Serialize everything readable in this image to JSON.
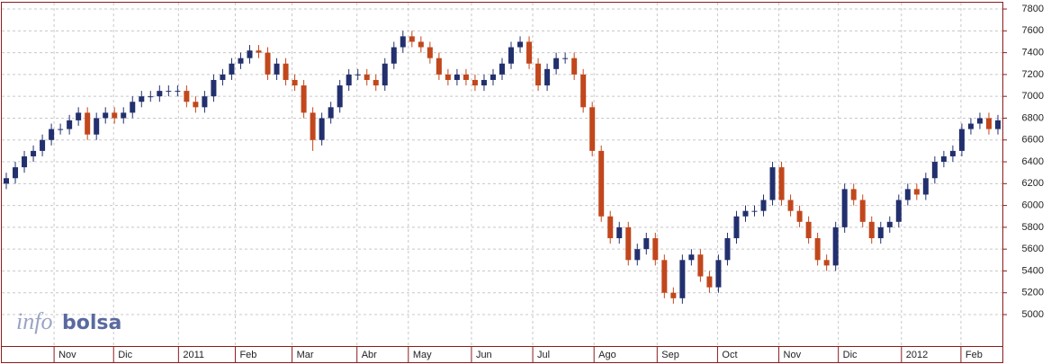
{
  "chart_data": {
    "type": "candlestick",
    "watermark": [
      "info",
      "bolsa"
    ],
    "up_color": "#23306e",
    "down_color": "#c2471c",
    "grid": true,
    "ylim": [
      4712,
      7858
    ],
    "yticks": [
      5000,
      5200,
      5400,
      5600,
      5800,
      6000,
      6200,
      6400,
      6600,
      6800,
      7000,
      7200,
      7400,
      7600,
      7800
    ],
    "xlim": [
      -0.5,
      110.5
    ],
    "xticks": [
      {
        "value": 5.3,
        "label": "Nov"
      },
      {
        "value": 11.9,
        "label": "Dic"
      },
      {
        "value": 19.1,
        "label": "2011"
      },
      {
        "value": 25.4,
        "label": "Feb"
      },
      {
        "value": 31.7,
        "label": "Mar"
      },
      {
        "value": 38.9,
        "label": "Abr"
      },
      {
        "value": 44.6,
        "label": "May"
      },
      {
        "value": 51.6,
        "label": "Jun"
      },
      {
        "value": 58.4,
        "label": "Jul"
      },
      {
        "value": 65.2,
        "label": "Ago"
      },
      {
        "value": 72.2,
        "label": "Sep"
      },
      {
        "value": 78.9,
        "label": "Oct"
      },
      {
        "value": 85.7,
        "label": "Nov"
      },
      {
        "value": 92.3,
        "label": "Dic"
      },
      {
        "value": 99.3,
        "label": "2012"
      },
      {
        "value": 105.9,
        "label": "Feb"
      }
    ],
    "open": [
      6200,
      6250,
      6350,
      6450,
      6500,
      6600,
      6700,
      6700,
      6780,
      6850,
      6650,
      6800,
      6850,
      6800,
      6850,
      6950,
      7000,
      7000,
      7050,
      7050,
      7050,
      6950,
      6900,
      7000,
      7150,
      7200,
      7300,
      7350,
      7420,
      7400,
      7200,
      7300,
      7150,
      7100,
      6850,
      6600,
      6800,
      6900,
      7100,
      7200,
      7200,
      7150,
      7100,
      7300,
      7450,
      7550,
      7500,
      7450,
      7350,
      7200,
      7150,
      7200,
      7150,
      7100,
      7150,
      7200,
      7300,
      7450,
      7500,
      7300,
      7100,
      7250,
      7350,
      7350,
      7200,
      6900,
      6500,
      5900,
      5700,
      5800,
      5500,
      5600,
      5700,
      5500,
      5200,
      5150,
      5500,
      5550,
      5350,
      5250,
      5500,
      5700,
      5900,
      5950,
      5950,
      6050,
      6350,
      6050,
      5950,
      5850,
      5700,
      5500,
      5450,
      5800,
      6150,
      6050,
      5850,
      5700,
      5800,
      5850,
      6050,
      6150,
      6100,
      6250,
      6400,
      6450,
      6500,
      6700,
      6750,
      6800,
      6700
    ],
    "high": [
      6300,
      6400,
      6500,
      6550,
      6650,
      6750,
      6750,
      6830,
      6900,
      6900,
      6850,
      6900,
      6900,
      6900,
      7000,
      7050,
      7050,
      7100,
      7100,
      7100,
      7100,
      7000,
      7050,
      7200,
      7250,
      7350,
      7400,
      7470,
      7470,
      7450,
      7350,
      7350,
      7200,
      7150,
      6900,
      6850,
      6950,
      7150,
      7250,
      7250,
      7250,
      7200,
      7350,
      7500,
      7600,
      7600,
      7550,
      7500,
      7400,
      7250,
      7250,
      7250,
      7200,
      7200,
      7250,
      7350,
      7500,
      7550,
      7550,
      7350,
      7300,
      7400,
      7400,
      7400,
      7250,
      6950,
      6550,
      5950,
      5850,
      5850,
      5650,
      5750,
      5750,
      5550,
      5250,
      5550,
      5600,
      5600,
      5400,
      5550,
      5750,
      5950,
      6000,
      6000,
      6100,
      6400,
      6400,
      6100,
      6000,
      5900,
      5750,
      5550,
      5850,
      6200,
      6200,
      6100,
      5900,
      5850,
      5900,
      6100,
      6200,
      6200,
      6300,
      6450,
      6500,
      6550,
      6750,
      6800,
      6850,
      6850,
      6830
    ],
    "low": [
      6150,
      6200,
      6300,
      6400,
      6450,
      6550,
      6650,
      6650,
      6730,
      6600,
      6600,
      6750,
      6750,
      6750,
      6800,
      6900,
      6950,
      6950,
      7000,
      7000,
      6900,
      6850,
      6850,
      6950,
      7100,
      7150,
      7250,
      7300,
      7350,
      7150,
      7150,
      7100,
      7050,
      6800,
      6500,
      6550,
      6750,
      6850,
      7050,
      7150,
      7100,
      7050,
      7050,
      7250,
      7400,
      7450,
      7400,
      7300,
      7150,
      7100,
      7100,
      7100,
      7050,
      7050,
      7100,
      7150,
      7250,
      7400,
      7250,
      7050,
      7050,
      7200,
      7300,
      7150,
      6850,
      6450,
      5850,
      5650,
      5650,
      5450,
      5450,
      5550,
      5450,
      5150,
      5100,
      5100,
      5450,
      5300,
      5200,
      5200,
      5450,
      5650,
      5850,
      5900,
      5900,
      6000,
      6000,
      5900,
      5800,
      5650,
      5450,
      5400,
      5400,
      5750,
      6000,
      5800,
      5650,
      5650,
      5750,
      5800,
      6000,
      6050,
      6050,
      6200,
      6350,
      6400,
      6450,
      6650,
      6700,
      6650,
      6650
    ],
    "close": [
      6250,
      6350,
      6450,
      6500,
      6600,
      6700,
      6700,
      6780,
      6850,
      6650,
      6800,
      6850,
      6800,
      6850,
      6950,
      7000,
      7000,
      7050,
      7050,
      7050,
      6950,
      6900,
      7000,
      7150,
      7200,
      7300,
      7350,
      7420,
      7400,
      7200,
      7300,
      7150,
      7100,
      6850,
      6600,
      6800,
      6900,
      7100,
      7200,
      7200,
      7150,
      7100,
      7300,
      7450,
      7550,
      7500,
      7450,
      7350,
      7200,
      7150,
      7200,
      7150,
      7100,
      7150,
      7200,
      7300,
      7450,
      7500,
      7300,
      7100,
      7250,
      7350,
      7350,
      7200,
      6900,
      6500,
      5900,
      5700,
      5800,
      5500,
      5600,
      5700,
      5500,
      5200,
      5150,
      5500,
      5550,
      5350,
      5250,
      5500,
      5700,
      5900,
      5950,
      5950,
      6050,
      6350,
      6050,
      5950,
      5850,
      5700,
      5500,
      5450,
      5800,
      6150,
      6050,
      5850,
      5700,
      5800,
      5850,
      6050,
      6150,
      6100,
      6250,
      6400,
      6450,
      6500,
      6700,
      6750,
      6800,
      6700,
      6780
    ]
  }
}
